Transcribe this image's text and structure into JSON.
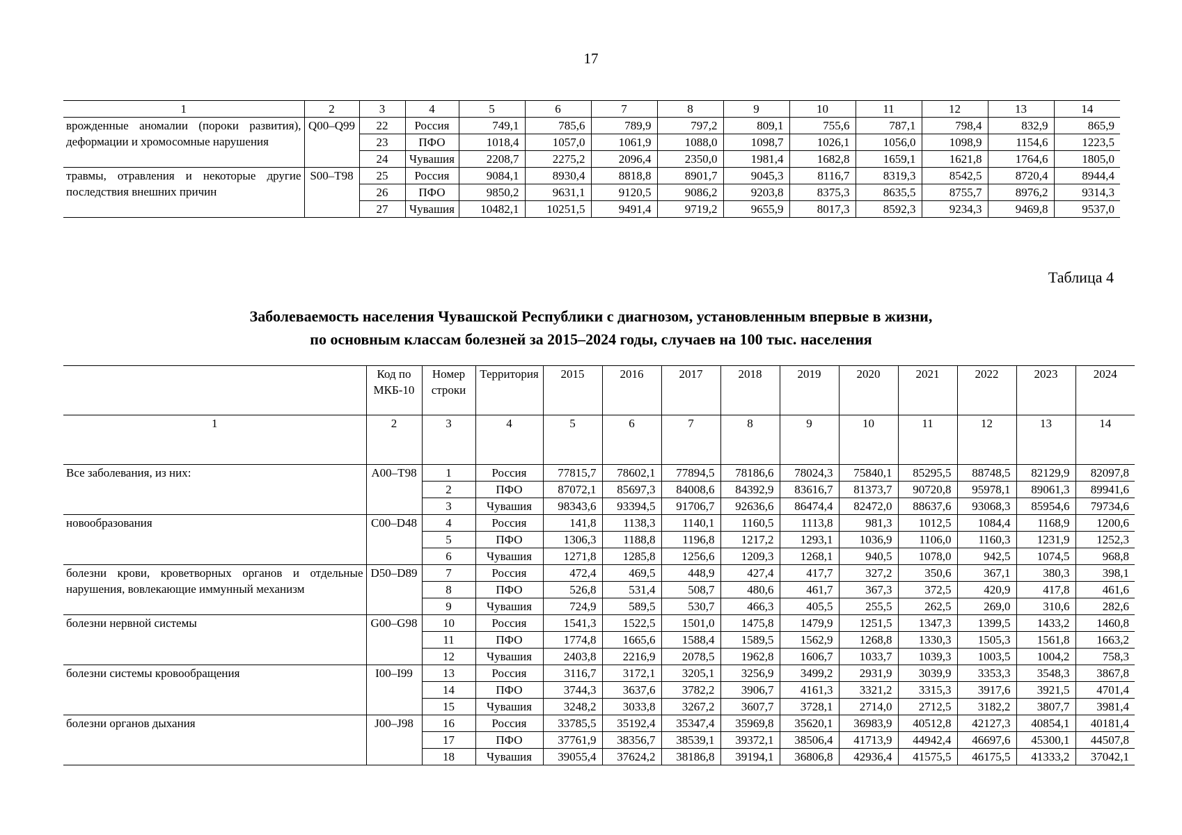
{
  "page_number": "17",
  "table1": {
    "columns": [
      1,
      2,
      3,
      4,
      5,
      6,
      7,
      8,
      9,
      10,
      11,
      12,
      13,
      14
    ],
    "groups": [
      {
        "name": "врожденные аномалии (пороки развития), деформации и хромосомные нарушения",
        "code": "Q00–Q99",
        "rows": [
          [
            22,
            "Россия",
            "749,1",
            "785,6",
            "789,9",
            "797,2",
            "809,1",
            "755,6",
            "787,1",
            "798,4",
            "832,9",
            "865,9"
          ],
          [
            23,
            "ПФО",
            "1018,4",
            "1057,0",
            "1061,9",
            "1088,0",
            "1098,7",
            "1026,1",
            "1056,0",
            "1098,9",
            "1154,6",
            "1223,5"
          ],
          [
            24,
            "Чувашия",
            "2208,7",
            "2275,2",
            "2096,4",
            "2350,0",
            "1981,4",
            "1682,8",
            "1659,1",
            "1621,8",
            "1764,6",
            "1805,0"
          ]
        ]
      },
      {
        "name": "травмы, отравления и некоторые другие последствия внешних причин",
        "code": "S00–T98",
        "rows": [
          [
            25,
            "Россия",
            "9084,1",
            "8930,4",
            "8818,8",
            "8901,7",
            "9045,3",
            "8116,7",
            "8319,3",
            "8542,5",
            "8720,4",
            "8944,4"
          ],
          [
            26,
            "ПФО",
            "9850,2",
            "9631,1",
            "9120,5",
            "9086,2",
            "9203,8",
            "8375,3",
            "8635,5",
            "8755,7",
            "8976,2",
            "9314,3"
          ],
          [
            27,
            "Чувашия",
            "10482,1",
            "10251,5",
            "9491,4",
            "9719,2",
            "9655,9",
            "8017,3",
            "8592,3",
            "9234,3",
            "9469,8",
            "9537,0"
          ]
        ]
      }
    ]
  },
  "caption": "Таблица 4",
  "title": [
    "Заболеваемость населения Чувашской Республики с диагнозом, установленным впервые в жизни,",
    "по основным классам болезней за 2015–2024 годы, случаев на 100 тыс. населения"
  ],
  "table2": {
    "header": [
      "Код по МКБ-10",
      "Номер строки",
      "Территория",
      "2015",
      "2016",
      "2017",
      "2018",
      "2019",
      "2020",
      "2021",
      "2022",
      "2023",
      "2024"
    ],
    "columns": [
      1,
      2,
      3,
      4,
      5,
      6,
      7,
      8,
      9,
      10,
      11,
      12,
      13,
      14
    ],
    "groups": [
      {
        "name": "Все заболевания, из них:",
        "code": "A00–T98",
        "rows": [
          [
            1,
            "Россия",
            "77815,7",
            "78602,1",
            "77894,5",
            "78186,6",
            "78024,3",
            "75840,1",
            "85295,5",
            "88748,5",
            "82129,9",
            "82097,8"
          ],
          [
            2,
            "ПФО",
            "87072,1",
            "85697,3",
            "84008,6",
            "84392,9",
            "83616,7",
            "81373,7",
            "90720,8",
            "95978,1",
            "89061,3",
            "89941,6"
          ],
          [
            3,
            "Чувашия",
            "98343,6",
            "93394,5",
            "91706,7",
            "92636,6",
            "86474,4",
            "82472,0",
            "88637,6",
            "93068,3",
            "85954,6",
            "79734,6"
          ]
        ]
      },
      {
        "name": "новообразования",
        "code": "C00–D48",
        "rows": [
          [
            4,
            "Россия",
            "141,8",
            "1138,3",
            "1140,1",
            "1160,5",
            "1113,8",
            "981,3",
            "1012,5",
            "1084,4",
            "1168,9",
            "1200,6"
          ],
          [
            5,
            "ПФО",
            "1306,3",
            "1188,8",
            "1196,8",
            "1217,2",
            "1293,1",
            "1036,9",
            "1106,0",
            "1160,3",
            "1231,9",
            "1252,3"
          ],
          [
            6,
            "Чувашия",
            "1271,8",
            "1285,8",
            "1256,6",
            "1209,3",
            "1268,1",
            "940,5",
            "1078,0",
            "942,5",
            "1074,5",
            "968,8"
          ]
        ]
      },
      {
        "name": "болезни крови, кроветворных органов и отдельные нарушения, вовлекающие иммунный механизм",
        "code": "D50–D89",
        "rows": [
          [
            7,
            "Россия",
            "472,4",
            "469,5",
            "448,9",
            "427,4",
            "417,7",
            "327,2",
            "350,6",
            "367,1",
            "380,3",
            "398,1"
          ],
          [
            8,
            "ПФО",
            "526,8",
            "531,4",
            "508,7",
            "480,6",
            "461,7",
            "367,3",
            "372,5",
            "420,9",
            "417,8",
            "461,6"
          ],
          [
            9,
            "Чувашия",
            "724,9",
            "589,5",
            "530,7",
            "466,3",
            "405,5",
            "255,5",
            "262,5",
            "269,0",
            "310,6",
            "282,6"
          ]
        ]
      },
      {
        "name": "болезни нервной системы",
        "code": "G00–G98",
        "rows": [
          [
            10,
            "Россия",
            "1541,3",
            "1522,5",
            "1501,0",
            "1475,8",
            "1479,9",
            "1251,5",
            "1347,3",
            "1399,5",
            "1433,2",
            "1460,8"
          ],
          [
            11,
            "ПФО",
            "1774,8",
            "1665,6",
            "1588,4",
            "1589,5",
            "1562,9",
            "1268,8",
            "1330,3",
            "1505,3",
            "1561,8",
            "1663,2"
          ],
          [
            12,
            "Чувашия",
            "2403,8",
            "2216,9",
            "2078,5",
            "1962,8",
            "1606,7",
            "1033,7",
            "1039,3",
            "1003,5",
            "1004,2",
            "758,3"
          ]
        ]
      },
      {
        "name": "болезни системы кровообращения",
        "code": "I00–I99",
        "rows": [
          [
            13,
            "Россия",
            "3116,7",
            "3172,1",
            "3205,1",
            "3256,9",
            "3499,2",
            "2931,9",
            "3039,9",
            "3353,3",
            "3548,3",
            "3867,8"
          ],
          [
            14,
            "ПФО",
            "3744,3",
            "3637,6",
            "3782,2",
            "3906,7",
            "4161,3",
            "3321,2",
            "3315,3",
            "3917,6",
            "3921,5",
            "4701,4"
          ],
          [
            15,
            "Чувашия",
            "3248,2",
            "3033,8",
            "3267,2",
            "3607,7",
            "3728,1",
            "2714,0",
            "2712,5",
            "3182,2",
            "3807,7",
            "3981,4"
          ]
        ]
      },
      {
        "name": "болезни органов дыхания",
        "code": "J00–J98",
        "rows": [
          [
            16,
            "Россия",
            "33785,5",
            "35192,4",
            "35347,4",
            "35969,8",
            "35620,1",
            "36983,9",
            "40512,8",
            "42127,3",
            "40854,1",
            "40181,4"
          ],
          [
            17,
            "ПФО",
            "37761,9",
            "38356,7",
            "38539,1",
            "39372,1",
            "38506,4",
            "41713,9",
            "44942,4",
            "46697,6",
            "45300,1",
            "44507,8"
          ],
          [
            18,
            "Чувашия",
            "39055,4",
            "37624,2",
            "38186,8",
            "39194,1",
            "36806,8",
            "42936,4",
            "41575,5",
            "46175,5",
            "41333,2",
            "37042,1"
          ]
        ]
      }
    ]
  }
}
